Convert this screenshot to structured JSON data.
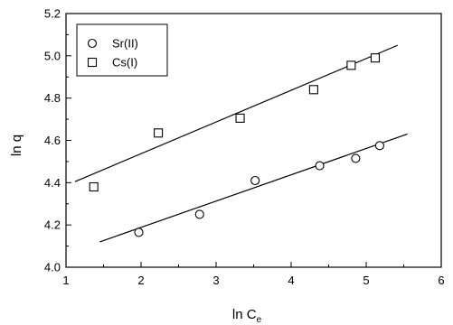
{
  "chart_data": {
    "type": "scatter",
    "title": "",
    "xlabel": "ln C",
    "xlabel_subscript": "e",
    "ylabel": "ln q",
    "xlim": [
      1,
      6
    ],
    "ylim": [
      4.0,
      5.2
    ],
    "xticks": [
      "1",
      "2",
      "3",
      "4",
      "5",
      "6"
    ],
    "yticks": [
      "4.0",
      "4.2",
      "4.4",
      "4.6",
      "4.8",
      "5.0",
      "5.2"
    ],
    "grid": false,
    "legend_position": "top-left",
    "series": [
      {
        "name": "Sr(II)",
        "marker": "circle",
        "x": [
          1.97,
          2.78,
          3.52,
          4.38,
          4.86,
          5.18
        ],
        "y": [
          4.165,
          4.25,
          4.41,
          4.48,
          4.515,
          4.575
        ],
        "fit_line": {
          "x": [
            1.45,
            5.55
          ],
          "y": [
            4.12,
            4.63
          ]
        }
      },
      {
        "name": "Cs(I)",
        "marker": "square",
        "x": [
          1.37,
          2.23,
          3.32,
          4.3,
          4.8,
          5.12
        ],
        "y": [
          4.38,
          4.635,
          4.705,
          4.84,
          4.955,
          4.99
        ],
        "fit_line": {
          "x": [
            1.12,
            5.42
          ],
          "y": [
            4.405,
            5.05
          ]
        }
      }
    ]
  }
}
